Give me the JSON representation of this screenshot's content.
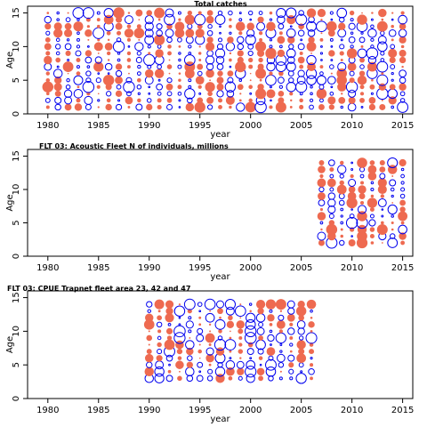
{
  "chart_data": [
    {
      "type": "bubble",
      "title": "Total catches",
      "xlabel": "year",
      "ylabel": "Age",
      "xlim": [
        1978,
        2016
      ],
      "ylim": [
        0,
        16
      ],
      "x_ticks": [
        1980,
        1985,
        1990,
        1995,
        2000,
        2005,
        2010,
        2015
      ],
      "y_ticks": [
        0,
        5,
        10,
        15
      ],
      "years": [
        1980,
        2015
      ],
      "ages": [
        1,
        15
      ],
      "legend": "none",
      "positive_color": "#ee6a50",
      "negative_color": "#0000ee"
    },
    {
      "type": "bubble",
      "title": "FLT 03: Acoustic Fleet   N of individuals, millions",
      "xlabel": "year",
      "ylabel": "Age",
      "xlim": [
        1978,
        2016
      ],
      "ylim": [
        0,
        16
      ],
      "x_ticks": [
        1980,
        1985,
        1990,
        1995,
        2000,
        2005,
        2010,
        2015
      ],
      "y_ticks": [
        0,
        5,
        10,
        15
      ],
      "years": [
        2007,
        2015
      ],
      "ages": [
        2,
        14
      ],
      "legend": "none",
      "positive_color": "#ee6a50",
      "negative_color": "#0000ee"
    },
    {
      "type": "bubble",
      "title": "FLT 03: CPUE Trapnet fleet area 23, 42 and 47",
      "xlabel": "year",
      "ylabel": "Age",
      "xlim": [
        1978,
        2016
      ],
      "ylim": [
        0,
        16
      ],
      "x_ticks": [
        1980,
        1985,
        1990,
        1995,
        2000,
        2005,
        2010,
        2015
      ],
      "y_ticks": [
        0,
        5,
        10,
        15
      ],
      "years": [
        1990,
        2006
      ],
      "ages": [
        3,
        14
      ],
      "legend": "none",
      "positive_color": "#ee6a50",
      "negative_color": "#0000ee"
    }
  ]
}
